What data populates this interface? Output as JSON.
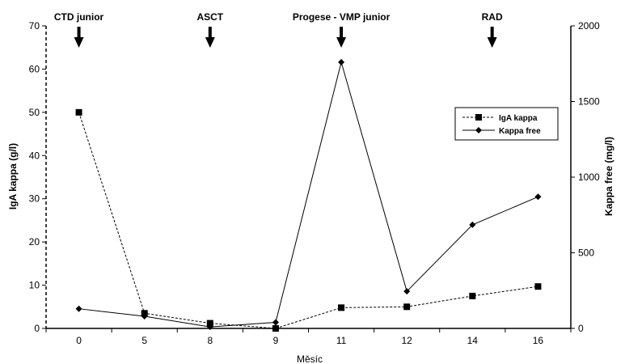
{
  "chart_data": {
    "type": "line",
    "categories": [
      "0",
      "5",
      "8",
      "9",
      "11",
      "12",
      "14",
      "16"
    ],
    "xlabel": "Měsíc",
    "ylabel_left": "IgA kappa (g/l)",
    "ylabel_right": "Kappa free (mg/l)",
    "ylim_left": [
      0,
      70
    ],
    "yticks_left": [
      0,
      10,
      20,
      30,
      40,
      50,
      60,
      70
    ],
    "ylim_right": [
      0,
      2000
    ],
    "yticks_right": [
      0,
      500,
      1000,
      1500,
      2000
    ],
    "series": [
      {
        "name": "IgA kappa",
        "axis": "left",
        "marker": "square",
        "line": "dashed",
        "values": [
          50,
          3.5,
          1.2,
          0,
          4.8,
          5,
          7.5,
          9.7
        ]
      },
      {
        "name": "Kappa free",
        "axis": "right",
        "marker": "diamond",
        "line": "solid",
        "values": [
          130,
          80,
          10,
          40,
          1760,
          245,
          685,
          870
        ]
      }
    ],
    "annotations": [
      {
        "text": "CTD junior",
        "at_category": 0
      },
      {
        "text": "ASCT",
        "at_category": 2
      },
      {
        "text": "Progese - VMP junior",
        "at_category": 4
      },
      {
        "text": "RAD",
        "at_category": 6.3
      }
    ],
    "legend": "right"
  }
}
